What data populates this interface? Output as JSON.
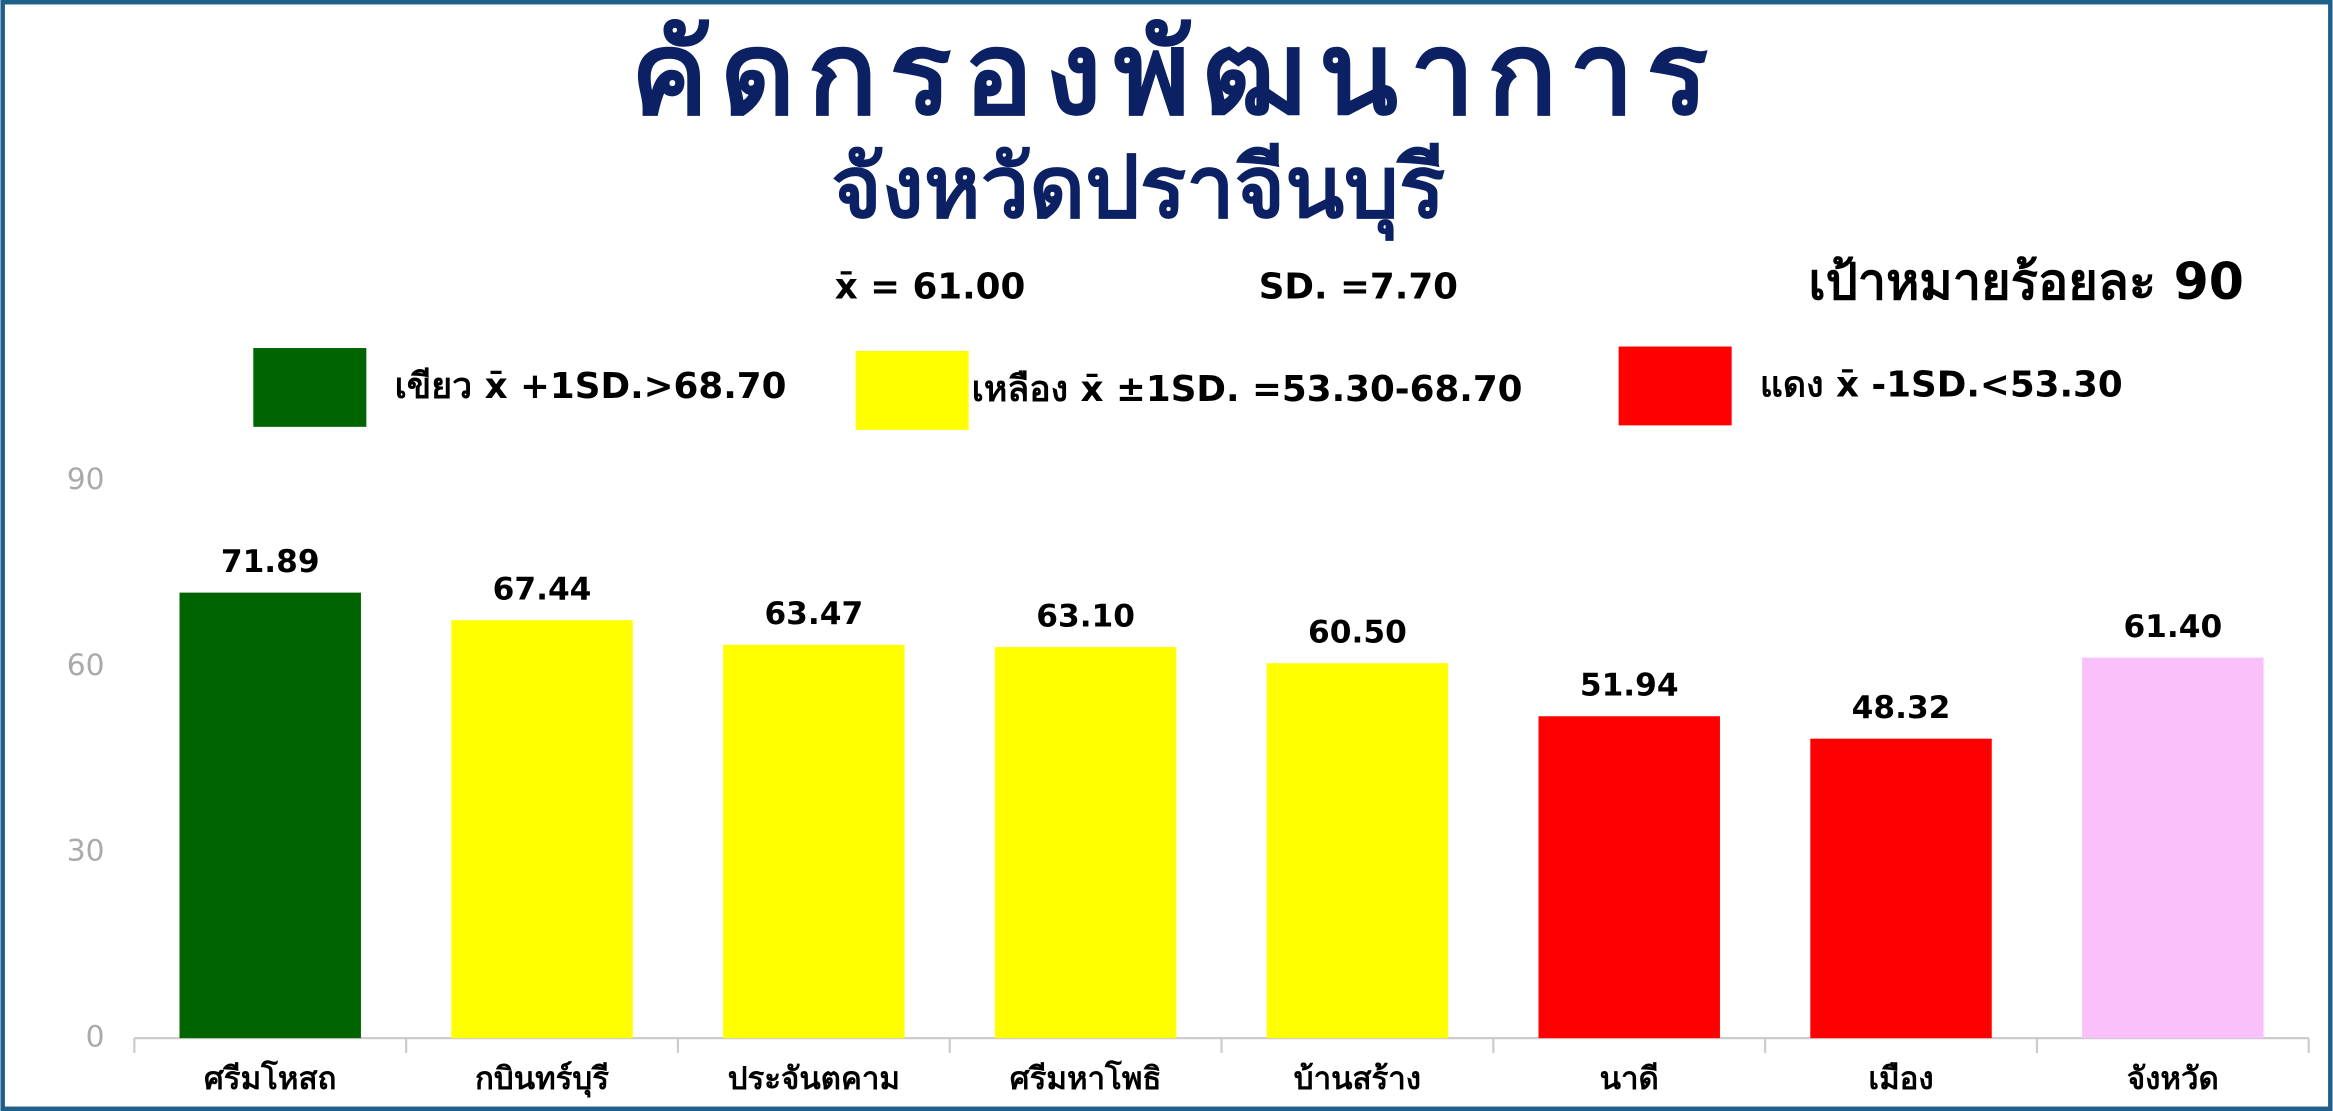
{
  "chart_data": {
    "type": "bar",
    "title": "คัดกรองพัฒนาการ",
    "subtitle": "จังหวัดปราจีนบุรี",
    "stats": [
      "x̄ = 61.00",
      "SD. =7.70"
    ],
    "target": "เป้าหมายร้อยละ 90",
    "legend": [
      {
        "label": "เขียว x̄ +1SD.>68.70",
        "color": "#006400"
      },
      {
        "label": "เหลือง x̄ ±1SD. =53.30-68.70",
        "color": "#ffff00"
      },
      {
        "label": "แดง x̄ -1SD.<53.30",
        "color": "#ff0000"
      }
    ],
    "categories": [
      "ศรีมโหสถ",
      "กบินทร์บุรี",
      "ประจันตคาม",
      "ศรีมหาโพธิ",
      "บ้านสร้าง",
      "นาดี",
      "เมือง",
      "จังหวัด"
    ],
    "values": [
      71.89,
      67.44,
      63.47,
      63.1,
      60.5,
      51.94,
      48.32,
      61.4
    ],
    "value_labels": [
      "71.89",
      "67.44",
      "63.47",
      "63.10",
      "60.50",
      "51.94",
      "48.32",
      "61.40"
    ],
    "colors": [
      "#006400",
      "#ffff00",
      "#ffff00",
      "#ffff00",
      "#ffff00",
      "#ff0000",
      "#ff0000",
      "#f9c0f9"
    ],
    "ylim": [
      0,
      90
    ],
    "yticks": [
      0,
      30,
      60,
      90
    ],
    "grid": false
  }
}
